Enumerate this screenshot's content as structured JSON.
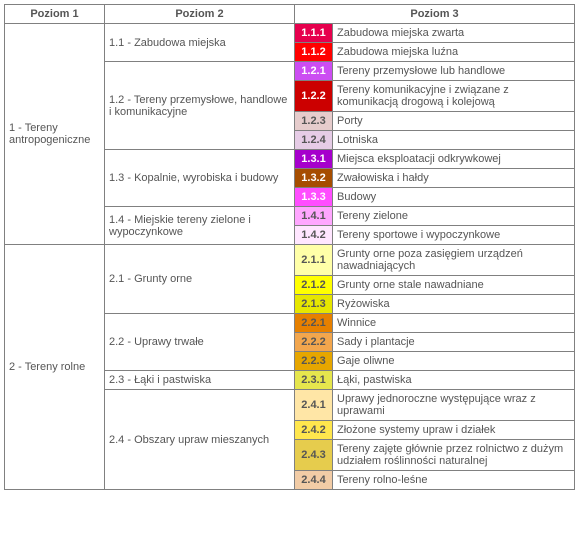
{
  "headers": {
    "l1": "Poziom 1",
    "l2": "Poziom 2",
    "l3": "Poziom 3"
  },
  "text_color": "#555555",
  "border_color": "#808080",
  "level1": [
    {
      "label": "1 - Tereny antropogeniczne"
    },
    {
      "label": "2 - Tereny rolne"
    }
  ],
  "level2": [
    {
      "label": "1.1 - Zabudowa miejska"
    },
    {
      "label": "1.2 - Tereny przemysłowe, handlowe i komunikacyjne"
    },
    {
      "label": "1.3 - Kopalnie, wyrobiska i budowy"
    },
    {
      "label": "1.4 - Miejskie tereny zielone i wypoczynkowe"
    },
    {
      "label": "2.1 - Grunty orne"
    },
    {
      "label": "2.2 - Uprawy trwałe"
    },
    {
      "label": "2.3 - Łąki i pastwiska"
    },
    {
      "label": "2.4 - Obszary upraw mieszanych"
    }
  ],
  "rows": [
    {
      "code": "1.1.1",
      "bg": "#e6004d",
      "fg": "#ffffff",
      "label": "Zabudowa miejska zwarta"
    },
    {
      "code": "1.1.2",
      "bg": "#ff0000",
      "fg": "#ffffff",
      "label": "Zabudowa miejska luźna"
    },
    {
      "code": "1.2.1",
      "bg": "#cc4df2",
      "fg": "#ffffff",
      "label": "Tereny przemysłowe lub handlowe"
    },
    {
      "code": "1.2.2",
      "bg": "#cc0000",
      "fg": "#ffffff",
      "label": "Tereny komunikacyjne i związane z komunikacją drogową i kolejową"
    },
    {
      "code": "1.2.3",
      "bg": "#e6cccc",
      "fg": "#555555",
      "label": "Porty"
    },
    {
      "code": "1.2.4",
      "bg": "#e6cce6",
      "fg": "#555555",
      "label": "Lotniska"
    },
    {
      "code": "1.3.1",
      "bg": "#a600cc",
      "fg": "#ffffff",
      "label": "Miejsca eksploatacji odkrywkowej"
    },
    {
      "code": "1.3.2",
      "bg": "#a64d00",
      "fg": "#ffffff",
      "label": "Zwałowiska i hałdy"
    },
    {
      "code": "1.3.3",
      "bg": "#ff4dff",
      "fg": "#ffffff",
      "label": "Budowy"
    },
    {
      "code": "1.4.1",
      "bg": "#ffa6ff",
      "fg": "#555555",
      "label": "Tereny zielone"
    },
    {
      "code": "1.4.2",
      "bg": "#ffe6ff",
      "fg": "#555555",
      "label": "Tereny sportowe i wypoczynkowe"
    },
    {
      "code": "2.1.1",
      "bg": "#ffffa8",
      "fg": "#555555",
      "label": "Grunty orne poza zasięgiem urządzeń nawadniających"
    },
    {
      "code": "2.1.2",
      "bg": "#ffff00",
      "fg": "#555555",
      "label": "Grunty orne stale nawadniane"
    },
    {
      "code": "2.1.3",
      "bg": "#e6e600",
      "fg": "#555555",
      "label": "Ryżowiska"
    },
    {
      "code": "2.2.1",
      "bg": "#e68000",
      "fg": "#555555",
      "label": "Winnice"
    },
    {
      "code": "2.2.2",
      "bg": "#f2a64d",
      "fg": "#555555",
      "label": "Sady i plantacje"
    },
    {
      "code": "2.2.3",
      "bg": "#e6a600",
      "fg": "#555555",
      "label": "Gaje oliwne"
    },
    {
      "code": "2.3.1",
      "bg": "#e6e64d",
      "fg": "#555555",
      "label": "Łąki, pastwiska"
    },
    {
      "code": "2.4.1",
      "bg": "#ffe6a6",
      "fg": "#555555",
      "label": "Uprawy jednoroczne występujące wraz z uprawami"
    },
    {
      "code": "2.4.2",
      "bg": "#ffe64d",
      "fg": "#555555",
      "label": "Złożone systemy upraw i działek"
    },
    {
      "code": "2.4.3",
      "bg": "#e6cc4d",
      "fg": "#555555",
      "label": "Tereny zajęte głównie przez rolnictwo z dużym udziałem roślinności naturalnej"
    },
    {
      "code": "2.4.4",
      "bg": "#f2cca6",
      "fg": "#555555",
      "label": "Tereny rolno-leśne"
    }
  ]
}
